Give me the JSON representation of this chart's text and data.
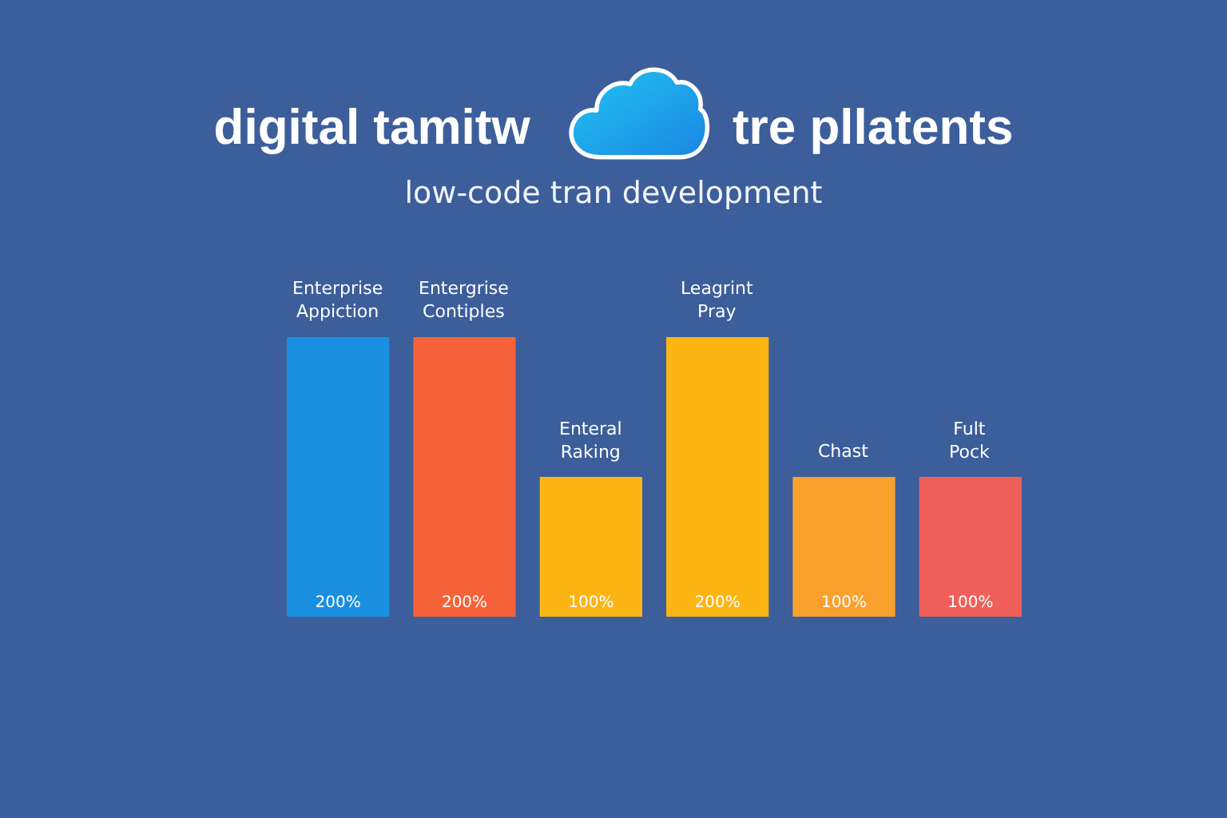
{
  "chart_data": {
    "type": "bar",
    "title": "digital tamitw tre pllatents",
    "subtitle": "low-code tran development",
    "categories": [
      "Enterprise Appiction",
      "Entergrise Contiples",
      "Enteral Raking",
      "Leagrint Pray",
      "Chast",
      "Fult Pock"
    ],
    "values": [
      200,
      200,
      100,
      200,
      100,
      100
    ],
    "colors": [
      "#1a8fe0",
      "#f5623a",
      "#fdb515",
      "#fdb514",
      "#f9a12c",
      "#f0605a"
    ],
    "value_labels": [
      "200%",
      "200%",
      "100%",
      "200%",
      "100%",
      "100%"
    ]
  }
}
